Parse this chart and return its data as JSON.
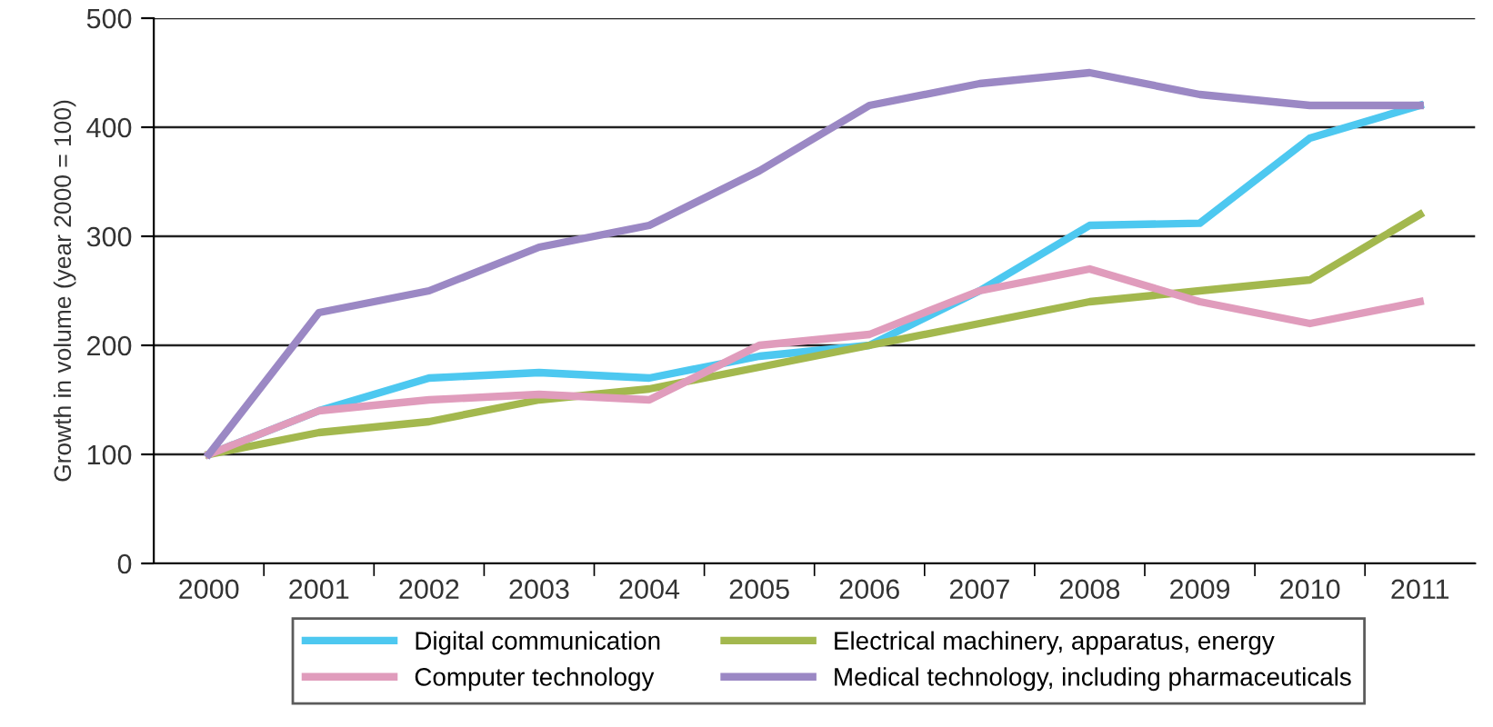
{
  "chart_data": {
    "type": "line",
    "ylabel": "Growth in volume (year 2000 = 100)",
    "categories": [
      "2000",
      "2001",
      "2002",
      "2003",
      "2004",
      "2005",
      "2006",
      "2007",
      "2008",
      "2009",
      "2010",
      "2011"
    ],
    "series": [
      {
        "name": "Digital communication",
        "color": "#4dc8f0",
        "values": [
          100,
          140,
          170,
          175,
          170,
          190,
          200,
          250,
          310,
          312,
          390,
          420
        ]
      },
      {
        "name": "Electrical machinery, apparatus, energy",
        "color": "#a3b84e",
        "values": [
          100,
          120,
          130,
          150,
          160,
          180,
          200,
          220,
          240,
          250,
          260,
          320
        ]
      },
      {
        "name": "Computer technology",
        "color": "#e09cbc",
        "values": [
          100,
          140,
          150,
          155,
          150,
          200,
          210,
          250,
          270,
          240,
          220,
          240
        ]
      },
      {
        "name": "Medical technology, including pharmaceuticals",
        "color": "#9b88c4",
        "values": [
          100,
          230,
          250,
          290,
          310,
          360,
          420,
          440,
          450,
          430,
          420,
          420
        ]
      }
    ],
    "ylim": [
      0,
      500
    ],
    "yticks": [
      0,
      100,
      200,
      300,
      400,
      500
    ],
    "grid": "y",
    "legend": "bottom",
    "marker": "none",
    "line_style": "solid"
  }
}
